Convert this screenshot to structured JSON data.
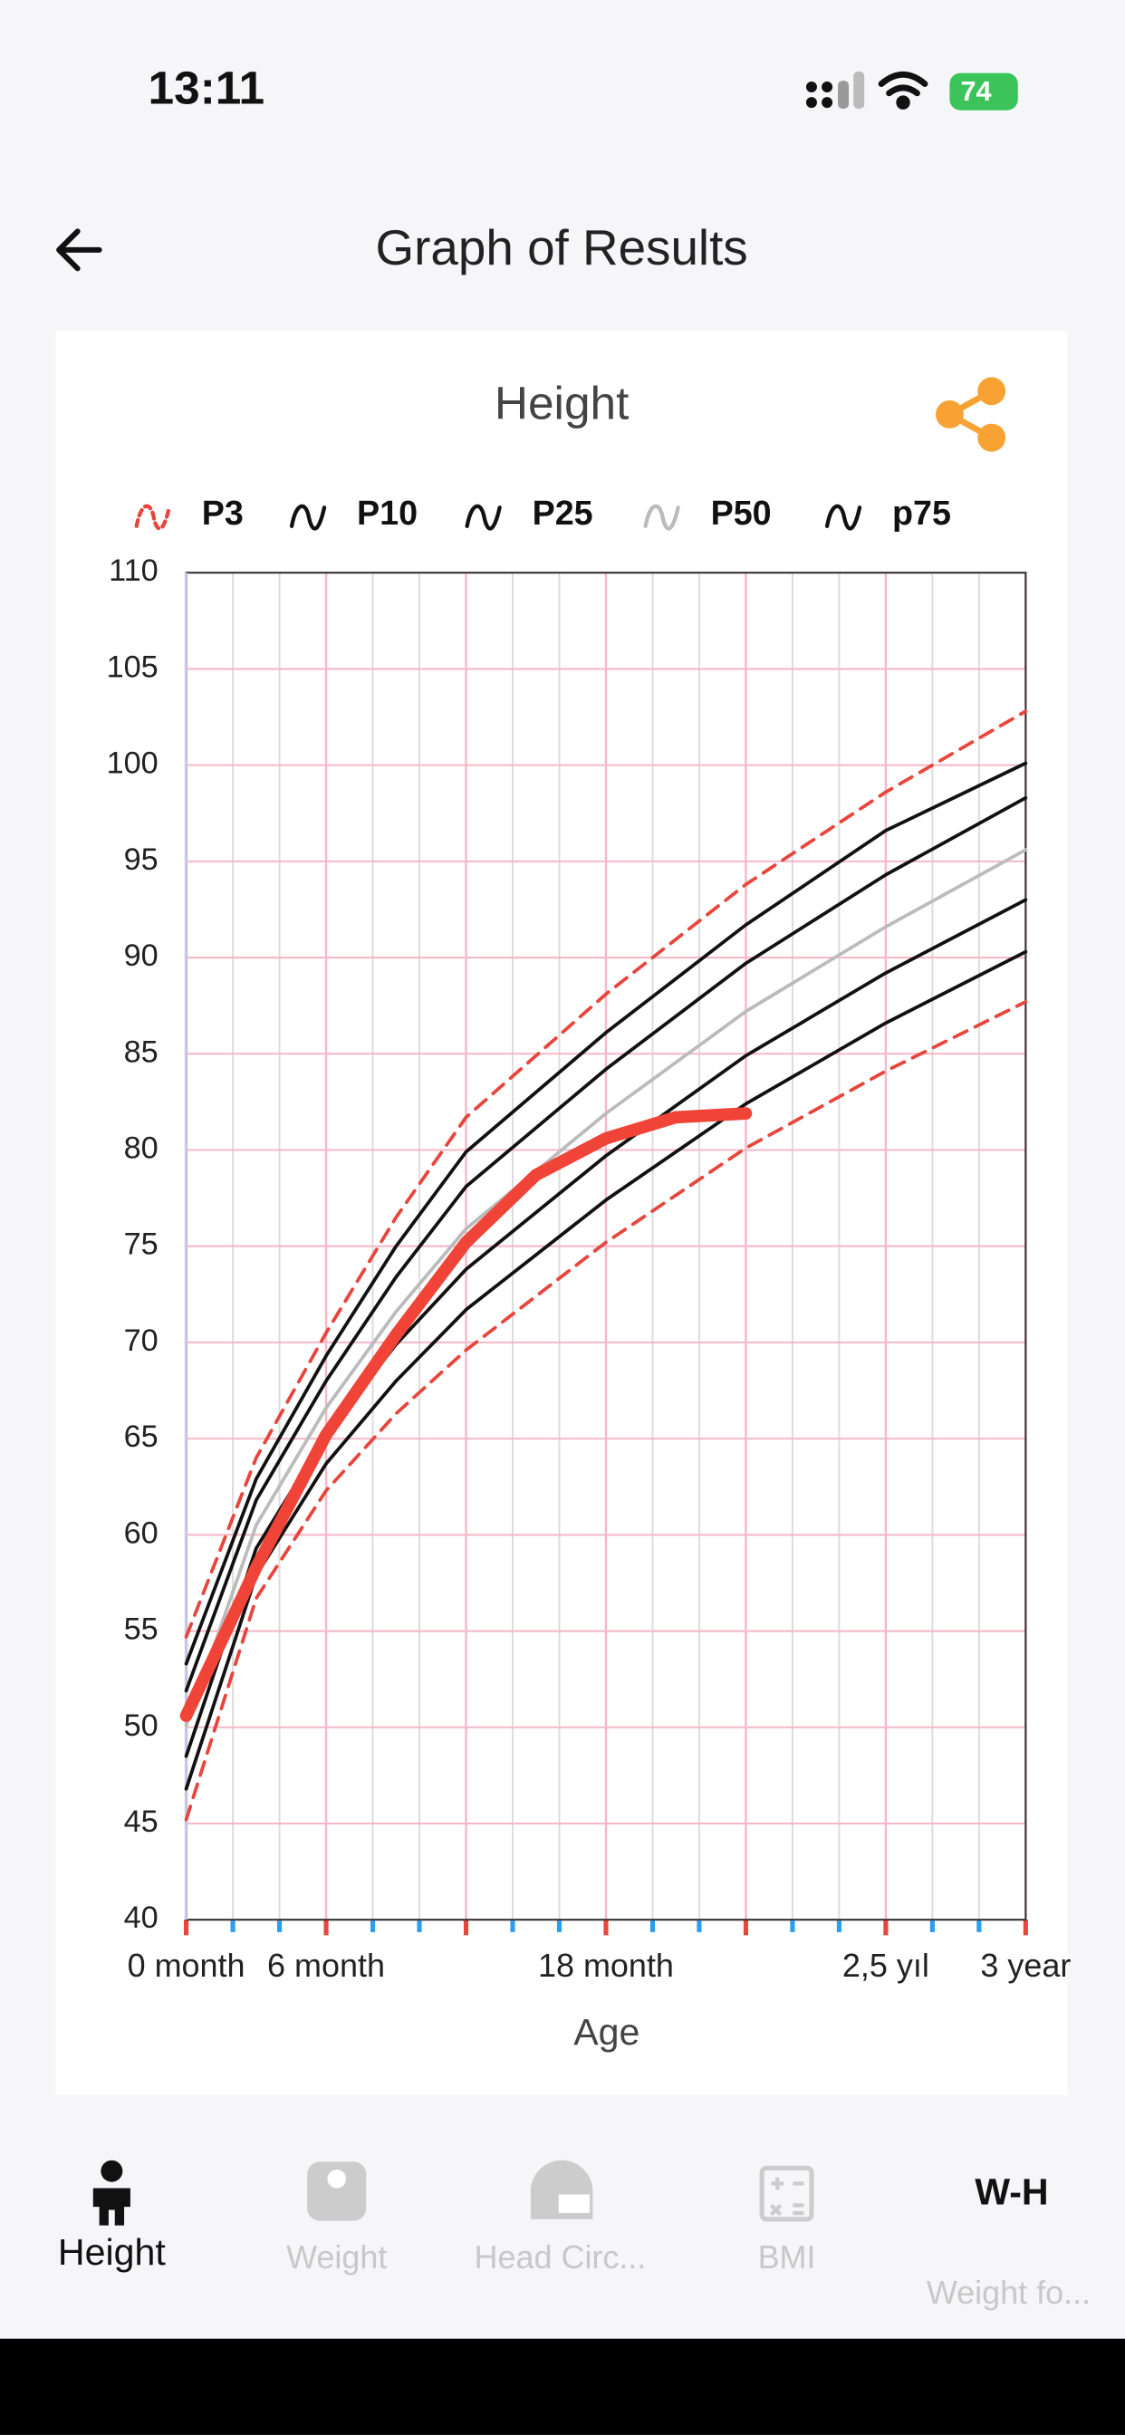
{
  "status": {
    "time": "13:11",
    "battery": "74"
  },
  "header": {
    "title": "Graph of Results"
  },
  "chart_data": {
    "type": "line",
    "title": "Height",
    "xlabel": "Age",
    "xlim": [
      0,
      36
    ],
    "ylim": [
      40,
      110
    ],
    "xticks": [
      {
        "value": 0,
        "label": "0 month"
      },
      {
        "value": 6,
        "label": "6 month"
      },
      {
        "value": 12,
        "label": null
      },
      {
        "value": 18,
        "label": "18 month"
      },
      {
        "value": 24,
        "label": null
      },
      {
        "value": 30,
        "label": "2,5 yıl"
      },
      {
        "value": 36,
        "label": "3 year"
      }
    ],
    "xminorticks": [
      2,
      4,
      8,
      10,
      14,
      16,
      20,
      22,
      26,
      28,
      32,
      34
    ],
    "yticks": [
      40,
      45,
      50,
      55,
      60,
      65,
      70,
      75,
      80,
      85,
      90,
      95,
      100,
      105,
      110
    ],
    "grid": true,
    "x": [
      0,
      3,
      6,
      9,
      12,
      18,
      24,
      30,
      36
    ],
    "series": [
      {
        "name": "P3",
        "color": "#e8453c",
        "dashed": true,
        "values": [
          45.2,
          56.7,
          62.3,
          66.3,
          69.6,
          75.2,
          80.1,
          84.1,
          87.7
        ]
      },
      {
        "name": "P10",
        "color": "#111111",
        "values": [
          46.8,
          57.9,
          63.7,
          68.0,
          71.7,
          77.4,
          82.4,
          86.6,
          90.3
        ]
      },
      {
        "name": "P25",
        "color": "#111111",
        "values": [
          48.5,
          59.3,
          65.2,
          69.9,
          73.8,
          79.7,
          84.9,
          89.2,
          93.0
        ]
      },
      {
        "name": "P50",
        "color": "#bbbbbb",
        "values": [
          50.1,
          60.5,
          66.6,
          71.6,
          75.9,
          81.9,
          87.2,
          91.6,
          95.6
        ]
      },
      {
        "name": "p75",
        "color": "#111111",
        "values": [
          51.9,
          61.8,
          68.0,
          73.4,
          78.1,
          84.2,
          89.7,
          94.3,
          98.3
        ]
      },
      {
        "color": "#111111",
        "values": [
          53.3,
          62.9,
          69.3,
          75.0,
          79.9,
          86.1,
          91.7,
          96.6,
          100.1
        ]
      },
      {
        "color": "#e8453c",
        "dashed": true,
        "values": [
          54.7,
          64.0,
          70.5,
          76.5,
          81.7,
          88.1,
          93.8,
          98.6,
          102.8
        ]
      },
      {
        "color": "#f04438",
        "width": 8,
        "x": [
          0,
          3,
          6,
          9,
          12,
          15,
          18,
          21,
          24
        ],
        "values": [
          50.6,
          58.3,
          65.2,
          70.4,
          75.2,
          78.7,
          80.6,
          81.7,
          81.9
        ]
      }
    ]
  },
  "tabs": {
    "height": "Height",
    "weight": "Weight",
    "head": "Head Circ...",
    "bmi": "BMI",
    "wh": "W-H",
    "wh_sub": "Weight fo..."
  }
}
